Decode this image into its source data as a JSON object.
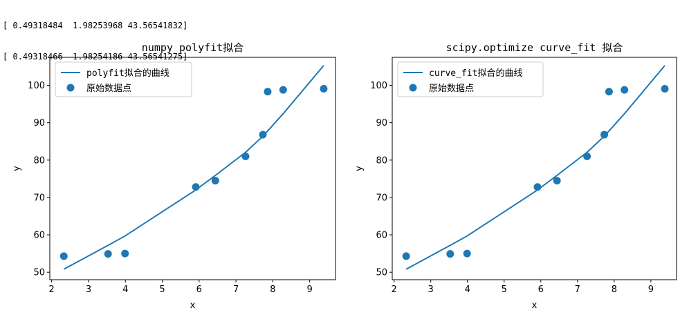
{
  "console": {
    "lines": [
      "[ 0.49318484  1.98253968 43.56541832]",
      "[ 0.49318466  1.98254186 43.56541275]"
    ]
  },
  "colors": {
    "series": "#1f77b4",
    "axes": "#000000",
    "legend_border": "#cccccc"
  },
  "chart_data": [
    {
      "type": "scatter",
      "title": "numpy polyfit拟合",
      "xlabel": "x",
      "ylabel": "y",
      "xlim": [
        1.95,
        9.7
      ],
      "ylim": [
        48,
        107.5
      ],
      "xticks": [
        2,
        3,
        4,
        5,
        6,
        7,
        8,
        9
      ],
      "yticks": [
        50,
        60,
        70,
        80,
        90,
        100
      ],
      "legend_placement": "upper-left",
      "grid": false,
      "series": [
        {
          "name": "polyfit拟合的曲线",
          "kind": "line",
          "x": [
            2.33,
            3.53,
            3.99,
            5.91,
            6.44,
            7.26,
            7.73,
            7.86,
            8.28,
            9.38
          ],
          "y": [
            50.8,
            57.2,
            59.7,
            72.0,
            75.9,
            82.1,
            86.4,
            87.8,
            92.4,
            105.3
          ]
        },
        {
          "name": "原始数据点",
          "kind": "points",
          "x": [
            2.33,
            3.53,
            3.99,
            5.91,
            6.44,
            7.26,
            7.73,
            7.86,
            8.28,
            9.38
          ],
          "y": [
            54.3,
            54.9,
            55.0,
            72.8,
            74.5,
            81.0,
            86.8,
            98.3,
            98.8,
            99.1
          ]
        }
      ]
    },
    {
      "type": "scatter",
      "title": "scipy.optimize curve_fit 拟合",
      "xlabel": "x",
      "ylabel": "y",
      "xlim": [
        1.95,
        9.7
      ],
      "ylim": [
        48,
        107.5
      ],
      "xticks": [
        2,
        3,
        4,
        5,
        6,
        7,
        8,
        9
      ],
      "yticks": [
        50,
        60,
        70,
        80,
        90,
        100
      ],
      "legend_placement": "upper-left",
      "grid": false,
      "series": [
        {
          "name": "curve_fit拟合的曲线",
          "kind": "line",
          "x": [
            2.33,
            3.53,
            3.99,
            5.91,
            6.44,
            7.26,
            7.73,
            7.86,
            8.28,
            9.38
          ],
          "y": [
            50.8,
            57.2,
            59.7,
            72.0,
            75.9,
            82.1,
            86.4,
            87.8,
            92.4,
            105.3
          ]
        },
        {
          "name": "原始数据点",
          "kind": "points",
          "x": [
            2.33,
            3.53,
            3.99,
            5.91,
            6.44,
            7.26,
            7.73,
            7.86,
            8.28,
            9.38
          ],
          "y": [
            54.3,
            54.9,
            55.0,
            72.8,
            74.5,
            81.0,
            86.8,
            98.3,
            98.8,
            99.1
          ]
        }
      ]
    }
  ]
}
